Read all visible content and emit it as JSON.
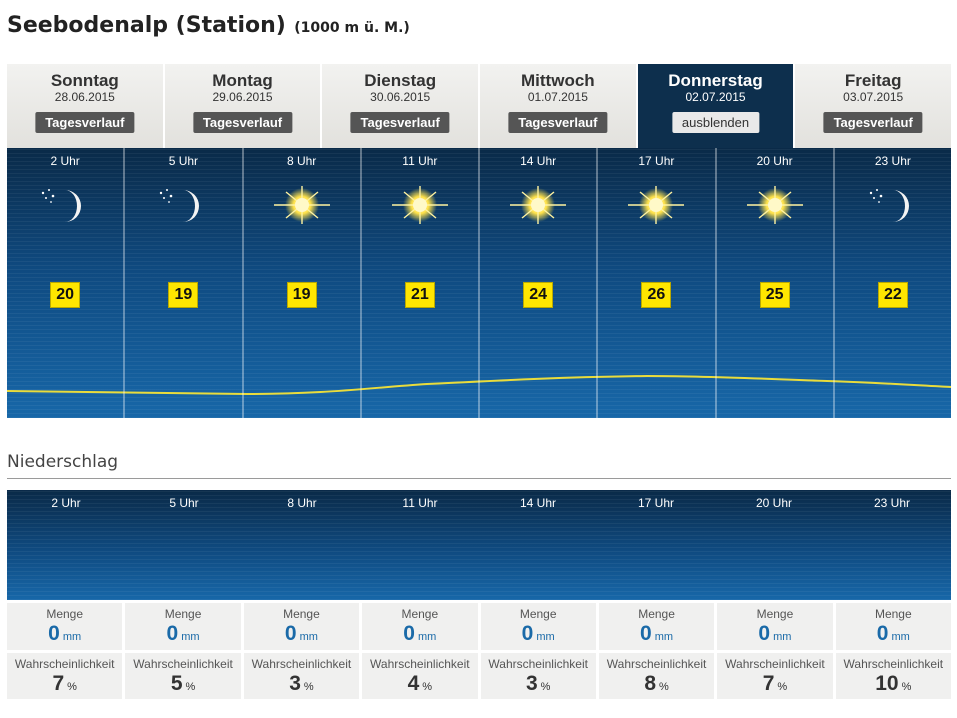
{
  "title": {
    "main": "Seebodenalp (Station)",
    "sub": "(1000 m ü. M.)"
  },
  "days": [
    {
      "name": "Sonntag",
      "date": "28.06.2015",
      "button": "Tagesverlauf"
    },
    {
      "name": "Montag",
      "date": "29.06.2015",
      "button": "Tagesverlauf"
    },
    {
      "name": "Dienstag",
      "date": "30.06.2015",
      "button": "Tagesverlauf"
    },
    {
      "name": "Mittwoch",
      "date": "01.07.2015",
      "button": "Tagesverlauf"
    },
    {
      "name": "Donnerstag",
      "date": "02.07.2015",
      "button": "ausblenden",
      "active": true
    },
    {
      "name": "Freitag",
      "date": "03.07.2015",
      "button": "Tagesverlauf"
    }
  ],
  "hours": [
    {
      "label": "2 Uhr",
      "icon": "moon-icon",
      "temp": "20"
    },
    {
      "label": "5 Uhr",
      "icon": "moon-icon",
      "temp": "19"
    },
    {
      "label": "8 Uhr",
      "icon": "sun-icon",
      "temp": "19"
    },
    {
      "label": "11 Uhr",
      "icon": "sun-icon",
      "temp": "21"
    },
    {
      "label": "14 Uhr",
      "icon": "sun-icon",
      "temp": "24"
    },
    {
      "label": "17 Uhr",
      "icon": "sun-icon",
      "temp": "26"
    },
    {
      "label": "20 Uhr",
      "icon": "sun-icon",
      "temp": "25"
    },
    {
      "label": "23 Uhr",
      "icon": "moon-icon",
      "temp": "22"
    }
  ],
  "niederschlag": {
    "title": "Niederschlag",
    "menge_label": "Menge",
    "menge_unit": "mm",
    "wahr_label": "Wahrscheinlichkeit",
    "wahr_unit": "%",
    "values": [
      {
        "menge": "0",
        "wahr": "7"
      },
      {
        "menge": "0",
        "wahr": "5"
      },
      {
        "menge": "0",
        "wahr": "3"
      },
      {
        "menge": "0",
        "wahr": "4"
      },
      {
        "menge": "0",
        "wahr": "3"
      },
      {
        "menge": "0",
        "wahr": "8"
      },
      {
        "menge": "0",
        "wahr": "7"
      },
      {
        "menge": "0",
        "wahr": "10"
      }
    ]
  },
  "colors": {
    "active_tab": "#0d2f4d",
    "temp_badge": "#ffe600",
    "temp_line": "#e9dc3c",
    "menge_value": "#1a6aa8"
  }
}
